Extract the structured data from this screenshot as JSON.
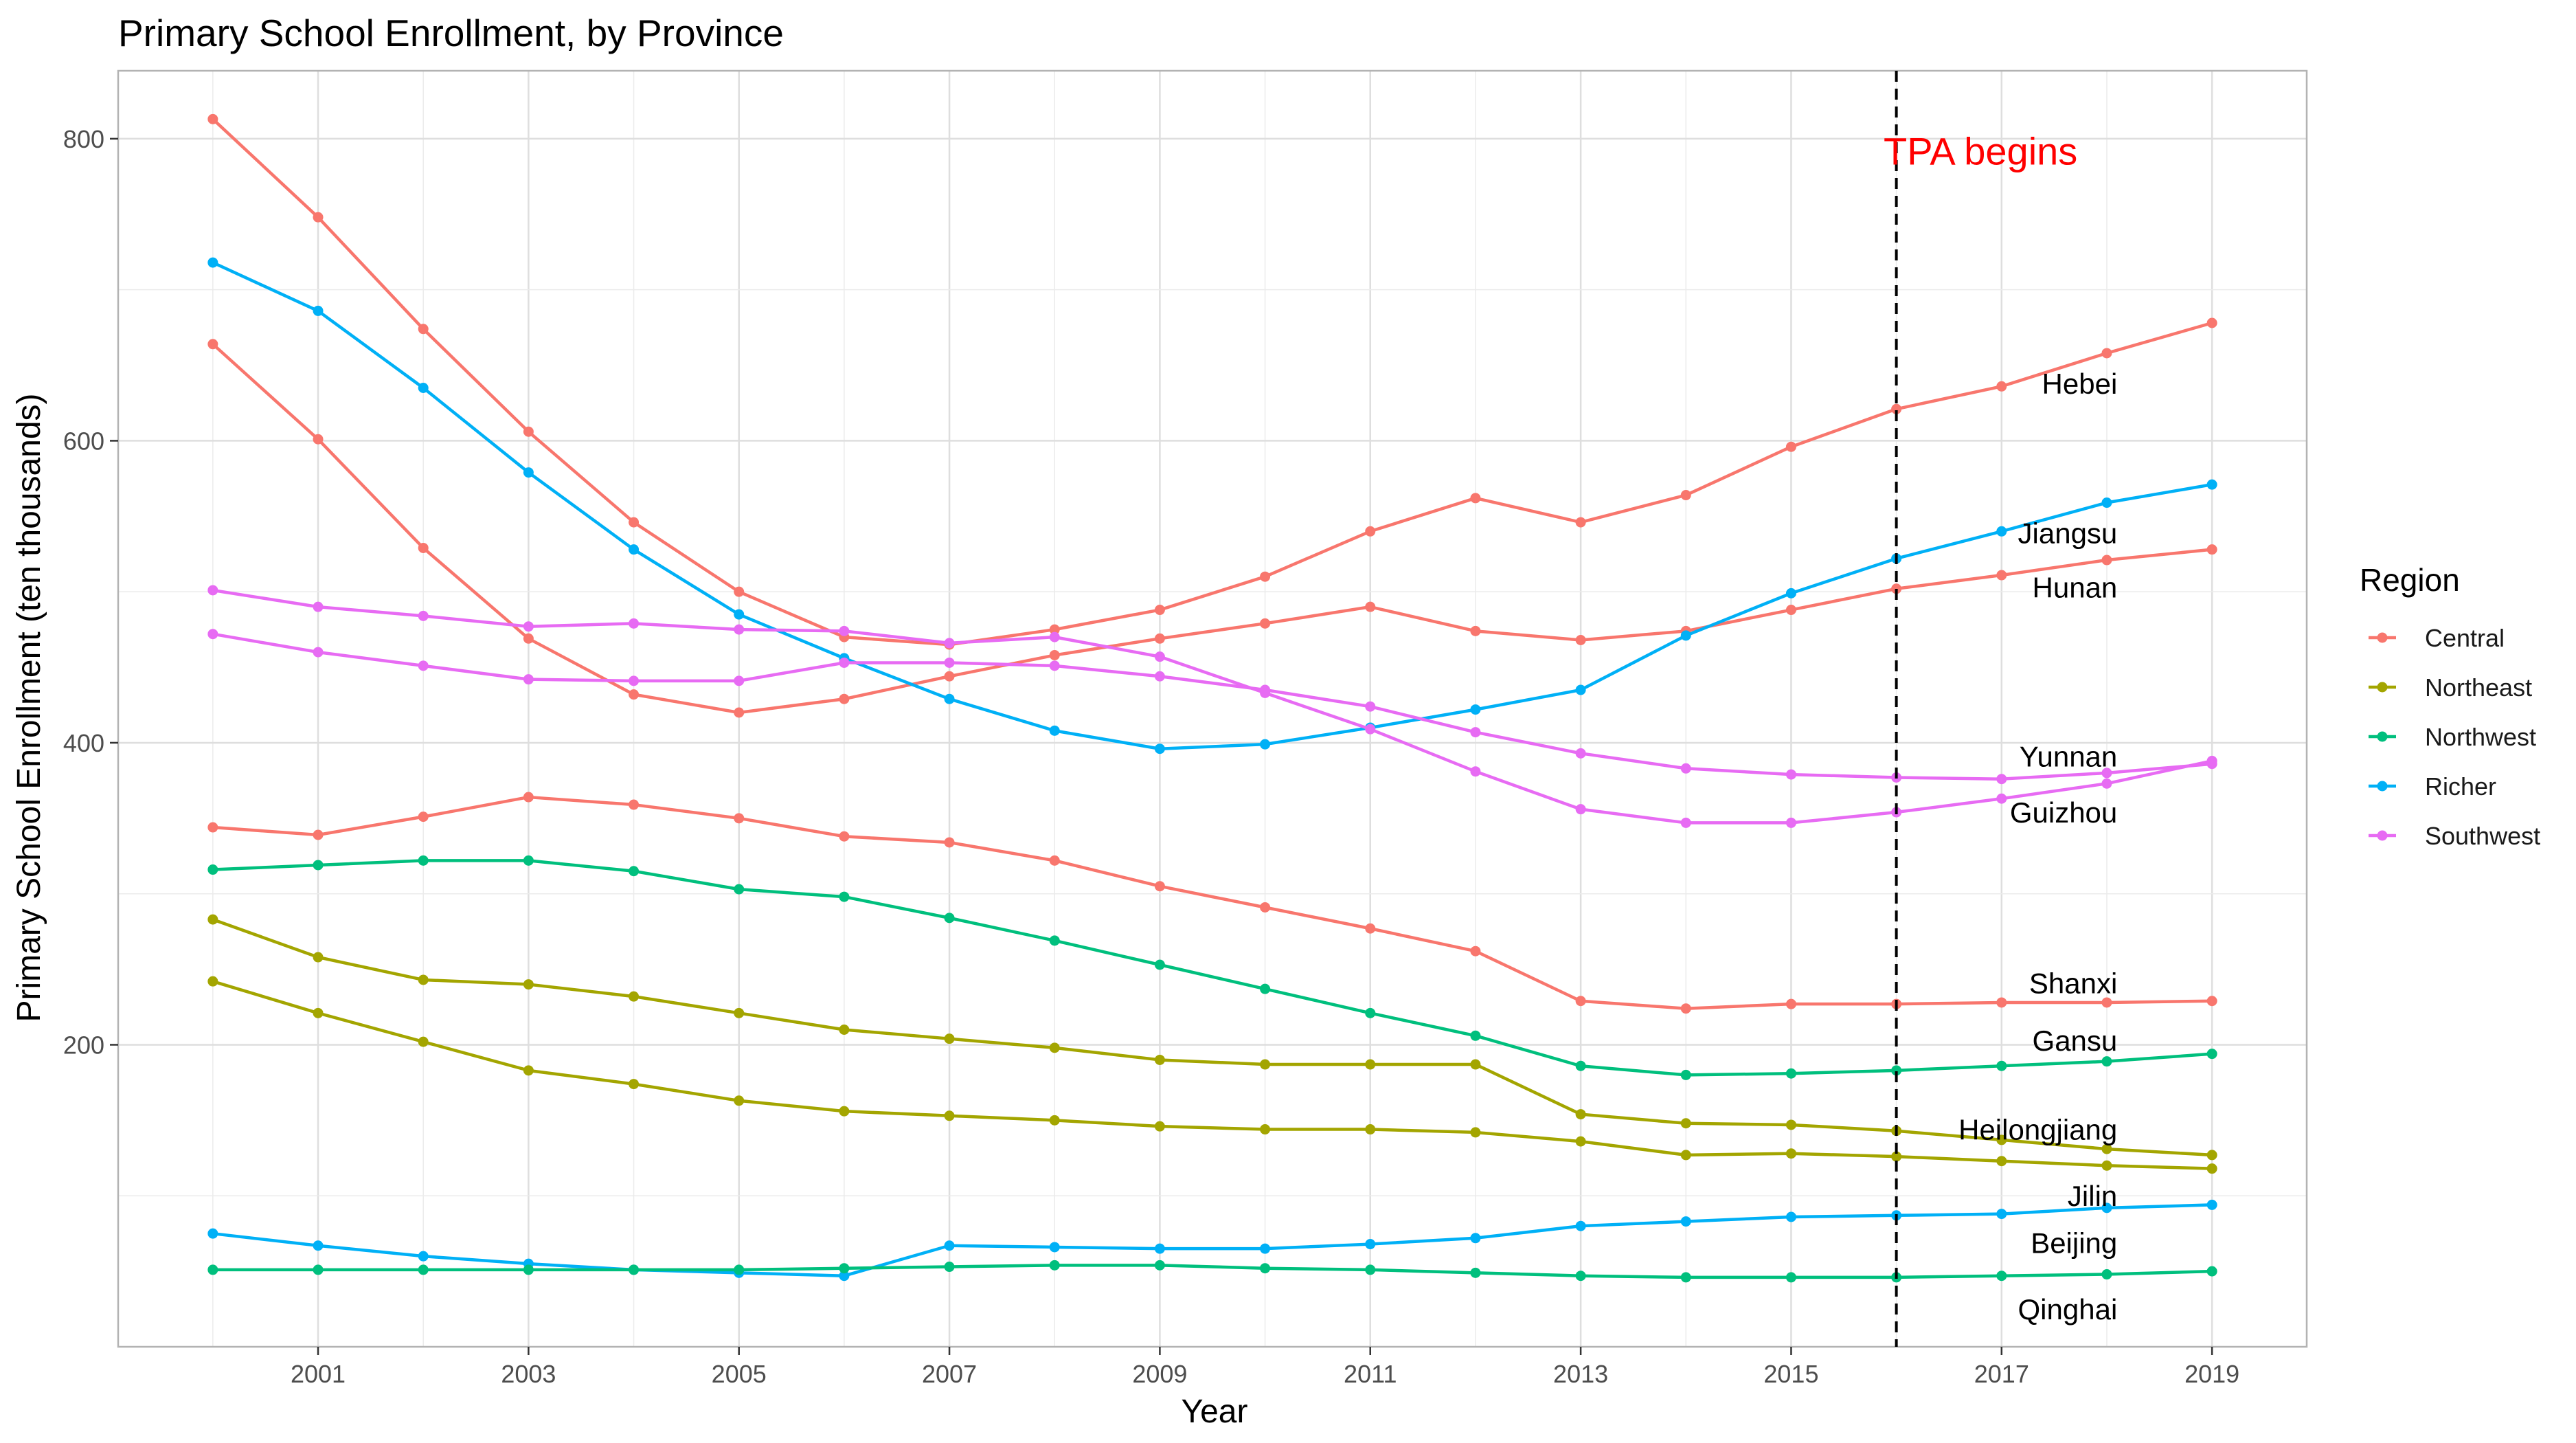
{
  "chart_data": {
    "type": "line",
    "title": "Primary School Enrollment, by Province",
    "xlabel": "Year",
    "ylabel": "Primary School Enrollment (ten thousands)",
    "xlim": [
      1999.1,
      2019.9
    ],
    "ylim": [
      0,
      845
    ],
    "x_ticks": [
      2001,
      2003,
      2005,
      2007,
      2009,
      2011,
      2013,
      2015,
      2017,
      2019
    ],
    "y_ticks": [
      200,
      400,
      600,
      800
    ],
    "grid": true,
    "legend": {
      "title": "Region",
      "position": "right",
      "entries": [
        {
          "label": "Central",
          "color": "#F8766D"
        },
        {
          "label": "Northeast",
          "color": "#A3A500"
        },
        {
          "label": "Northwest",
          "color": "#00BF7D"
        },
        {
          "label": "Richer",
          "color": "#00B0F6"
        },
        {
          "label": "Southwest",
          "color": "#E76BF3"
        }
      ]
    },
    "x": [
      2000,
      2001,
      2002,
      2003,
      2004,
      2005,
      2006,
      2007,
      2008,
      2009,
      2010,
      2011,
      2012,
      2013,
      2014,
      2015,
      2016,
      2017,
      2018,
      2019
    ],
    "series": [
      {
        "name": "Hebei",
        "region": "Central",
        "values": [
          664,
          601,
          529,
          469,
          432,
          420,
          429,
          444,
          458,
          469,
          479,
          490,
          474,
          468,
          474,
          488,
          502,
          511,
          521,
          528
        ]
      },
      {
        "name": "Hunan",
        "region": "Central",
        "values": [
          813,
          748,
          674,
          606,
          546,
          500,
          470,
          465,
          475,
          488,
          510,
          540,
          562,
          546,
          564,
          596,
          621,
          636,
          658,
          678
        ]
      },
      {
        "name": "Shanxi",
        "region": "Central",
        "values": [
          344,
          339,
          351,
          364,
          359,
          350,
          338,
          334,
          322,
          305,
          291,
          277,
          262,
          229,
          224,
          227,
          227,
          228,
          228,
          229
        ]
      },
      {
        "name": "Jiangsu",
        "region": "Richer",
        "values": [
          718,
          686,
          635,
          579,
          528,
          485,
          456,
          429,
          408,
          396,
          399,
          410,
          422,
          435,
          471,
          499,
          522,
          540,
          559,
          571
        ]
      },
      {
        "name": "Beijing",
        "region": "Richer",
        "values": [
          75,
          67,
          60,
          55,
          51,
          49,
          47,
          67,
          66,
          65,
          65,
          68,
          72,
          80,
          83,
          86,
          87,
          88,
          92,
          94
        ]
      },
      {
        "name": "Yunnan",
        "region": "Southwest",
        "values": [
          501,
          490,
          484,
          477,
          479,
          475,
          474,
          466,
          470,
          457,
          433,
          409,
          381,
          356,
          347,
          347,
          354,
          363,
          373,
          388
        ]
      },
      {
        "name": "Guizhou",
        "region": "Southwest",
        "values": [
          472,
          460,
          451,
          442,
          441,
          441,
          453,
          453,
          451,
          444,
          435,
          424,
          407,
          393,
          383,
          379,
          377,
          376,
          380,
          386
        ]
      },
      {
        "name": "Gansu",
        "region": "Northwest",
        "values": [
          316,
          319,
          322,
          322,
          315,
          303,
          298,
          284,
          269,
          253,
          237,
          221,
          206,
          186,
          180,
          181,
          183,
          186,
          189,
          194
        ]
      },
      {
        "name": "Qinghai",
        "region": "Northwest",
        "values": [
          51,
          51,
          51,
          51,
          51,
          51,
          52,
          53,
          54,
          54,
          52,
          51,
          49,
          47,
          46,
          46,
          46,
          47,
          48,
          50
        ]
      },
      {
        "name": "Heilongjiang",
        "region": "Northeast",
        "values": [
          283,
          258,
          243,
          240,
          232,
          221,
          210,
          204,
          198,
          190,
          187,
          187,
          187,
          154,
          148,
          147,
          143,
          137,
          131,
          127
        ]
      },
      {
        "name": "Jilin",
        "region": "Northeast",
        "values": [
          242,
          221,
          202,
          183,
          174,
          163,
          156,
          153,
          150,
          146,
          144,
          144,
          142,
          136,
          127,
          128,
          126,
          123,
          120,
          118
        ]
      }
    ],
    "series_labels": [
      {
        "text": "Hebei",
        "y": 638
      },
      {
        "text": "Jiangsu",
        "y": 539
      },
      {
        "text": "Hunan",
        "y": 503
      },
      {
        "text": "Yunnan",
        "y": 391
      },
      {
        "text": "Guizhou",
        "y": 354
      },
      {
        "text": "Shanxi",
        "y": 241
      },
      {
        "text": "Gansu",
        "y": 203
      },
      {
        "text": "Heilongjiang",
        "y": 144
      },
      {
        "text": "Jilin",
        "y": 100
      },
      {
        "text": "Beijing",
        "y": 69
      },
      {
        "text": "Qinghai",
        "y": 25
      }
    ],
    "annotations": [
      {
        "type": "vline",
        "x": 2016,
        "style": "dashed",
        "color": "#000000"
      },
      {
        "type": "text",
        "text": "TPA begins",
        "x": 2016.8,
        "y": 792,
        "color": "#FF0000"
      }
    ]
  }
}
